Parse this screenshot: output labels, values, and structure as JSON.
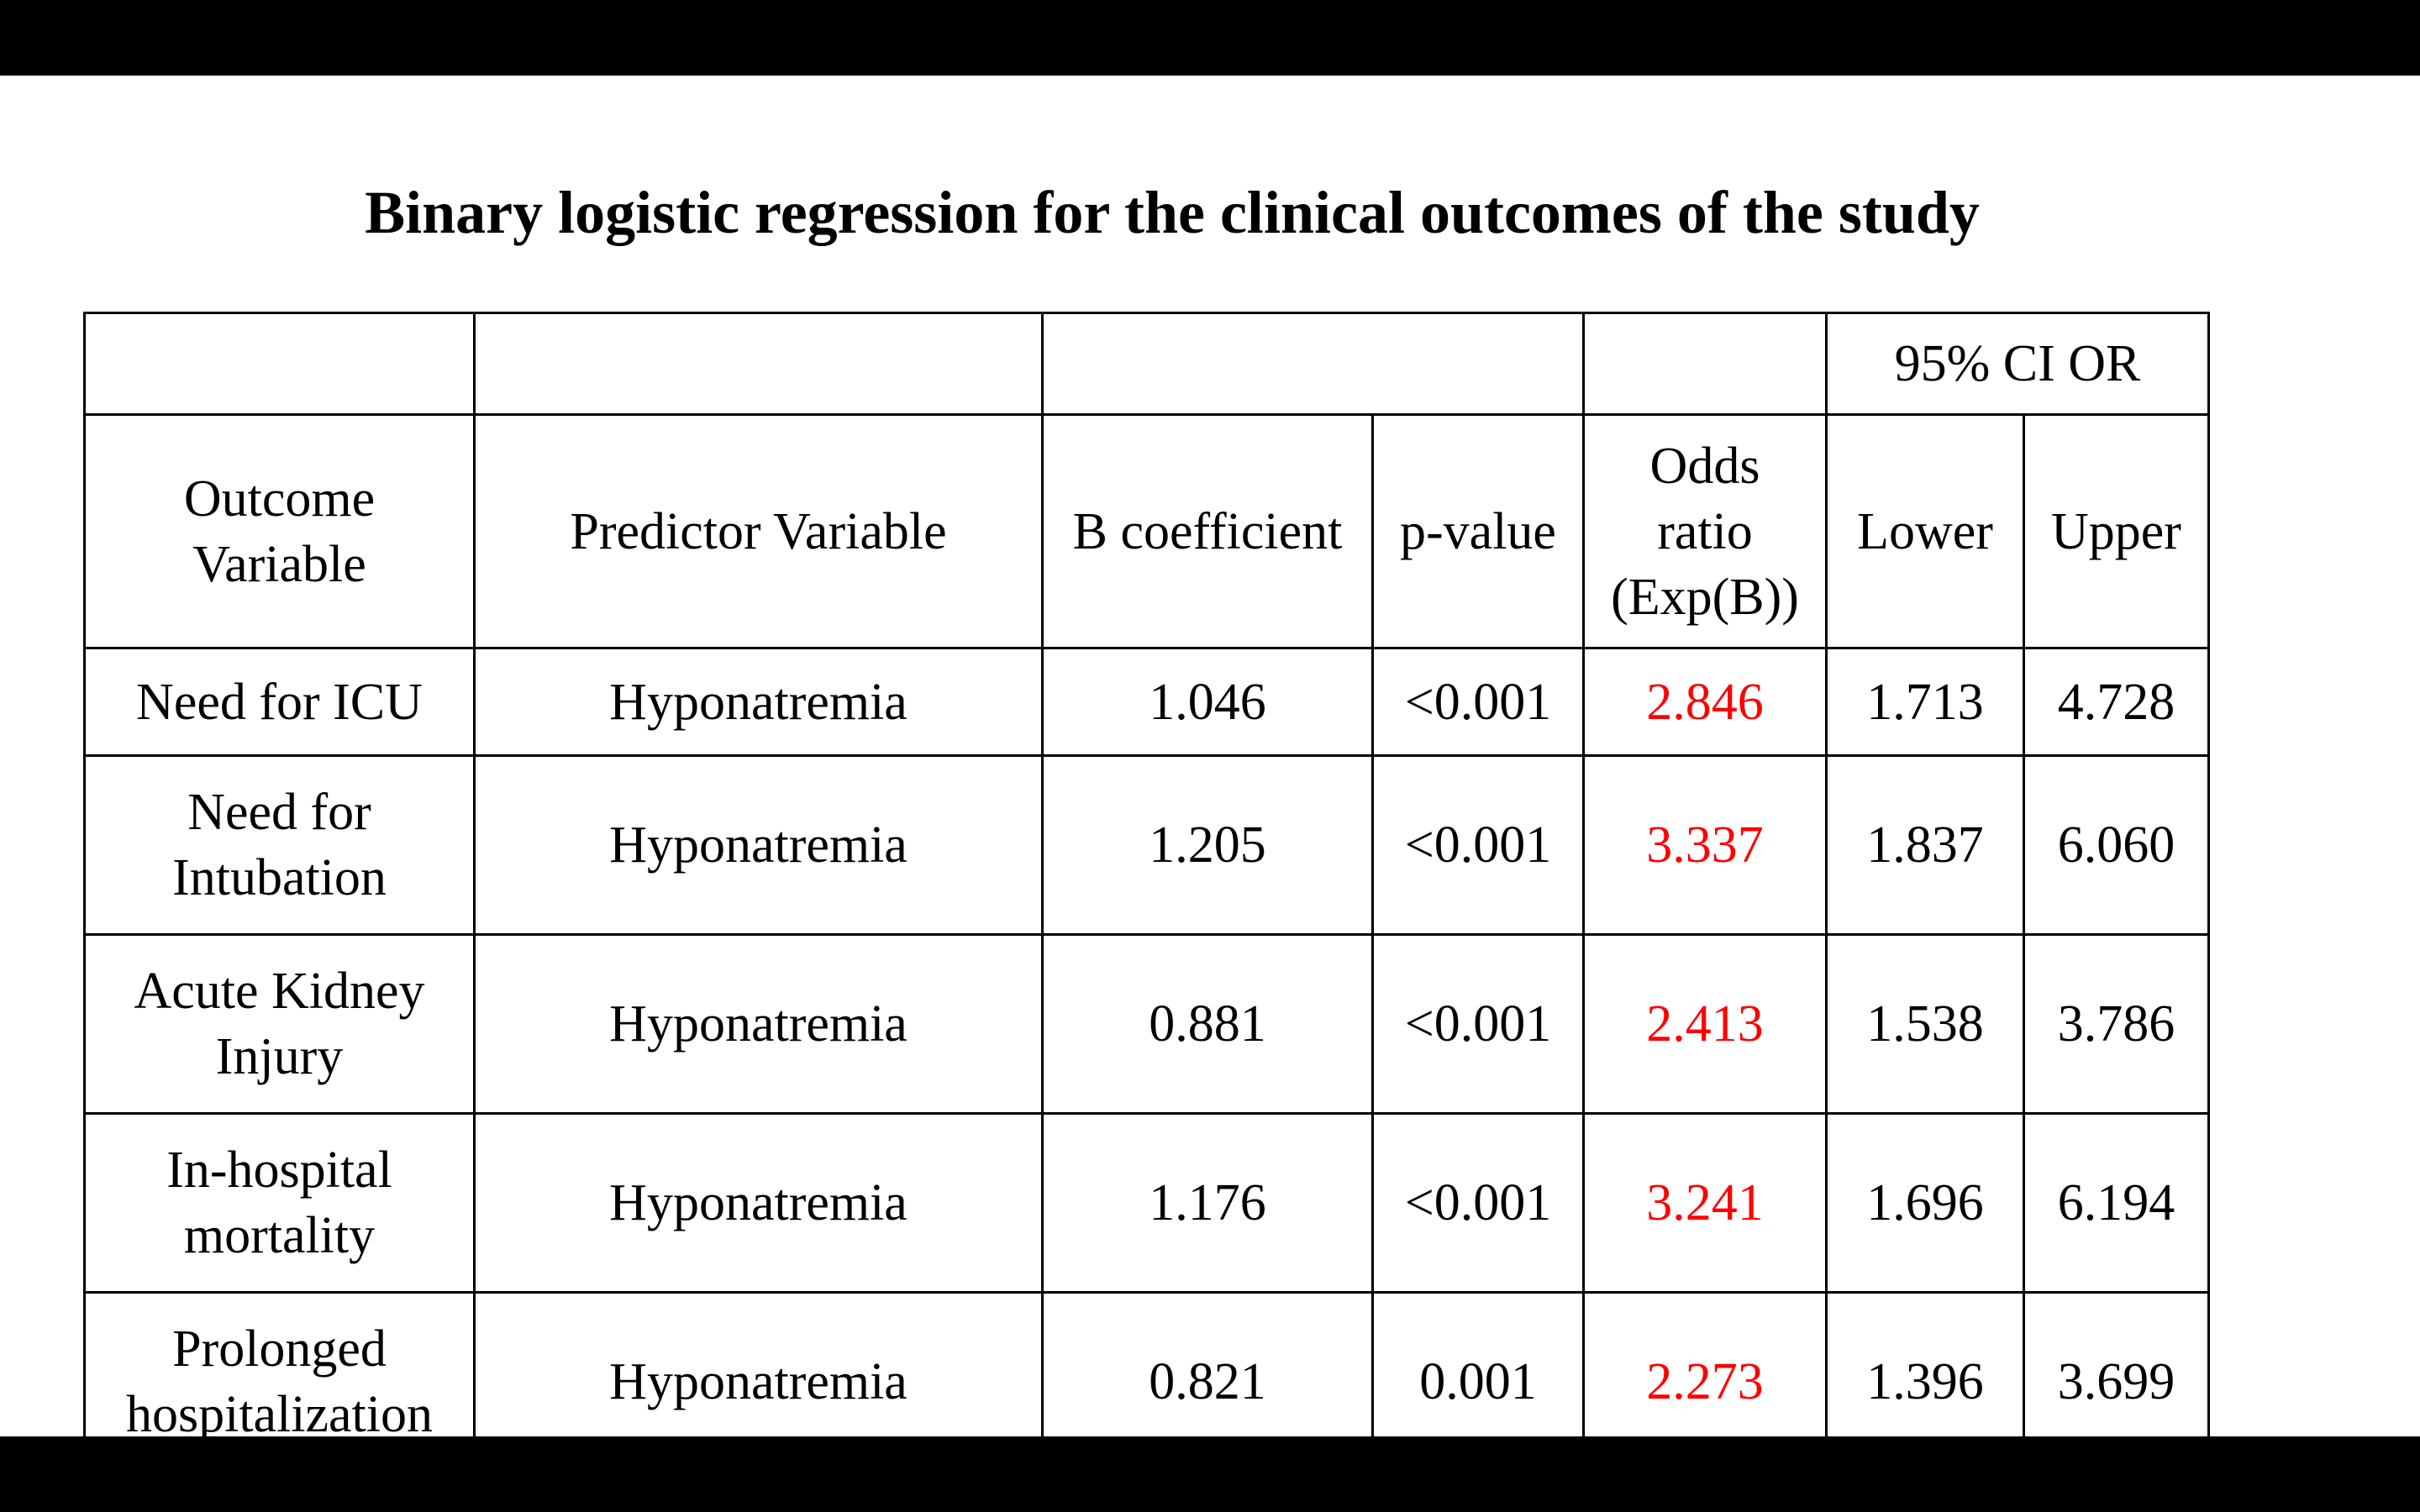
{
  "title": "Binary logistic regression for the clinical outcomes of the study",
  "table": {
    "group_header": "95% CI OR",
    "columns": {
      "outcome": [
        "Outcome",
        "Variable"
      ],
      "predictor": "Predictor Variable",
      "b_coefficient": "B coefficient",
      "p_value": "p-value",
      "odds_ratio": [
        "Odds",
        "ratio",
        "(Exp(B))"
      ],
      "lower": "Lower",
      "upper": "Upper"
    },
    "rows": [
      {
        "outcome": [
          "Need for ICU"
        ],
        "predictor": "Hyponatremia",
        "b": "1.046",
        "p": "<0.001",
        "or": "2.846",
        "lower": "1.713",
        "upper": "4.728"
      },
      {
        "outcome": [
          "Need for",
          "Intubation"
        ],
        "predictor": "Hyponatremia",
        "b": "1.205",
        "p": "<0.001",
        "or": "3.337",
        "lower": "1.837",
        "upper": "6.060"
      },
      {
        "outcome": [
          "Acute Kidney",
          "Injury"
        ],
        "predictor": "Hyponatremia",
        "b": "0.881",
        "p": "<0.001",
        "or": "2.413",
        "lower": "1.538",
        "upper": "3.786"
      },
      {
        "outcome": [
          "In-hospital",
          "mortality"
        ],
        "predictor": "Hyponatremia",
        "b": "1.176",
        "p": "<0.001",
        "or": "3.241",
        "lower": "1.696",
        "upper": "6.194"
      },
      {
        "outcome": [
          "Prolonged",
          "hospitalization"
        ],
        "predictor": "Hyponatremia",
        "b": "0.821",
        "p": "0.001",
        "or": "2.273",
        "lower": "1.396",
        "upper": "3.699"
      }
    ]
  },
  "colors": {
    "background": "#ffffff",
    "letterbox": "#000000",
    "text": "#000000",
    "odds_ratio_highlight": "#ff0000"
  }
}
